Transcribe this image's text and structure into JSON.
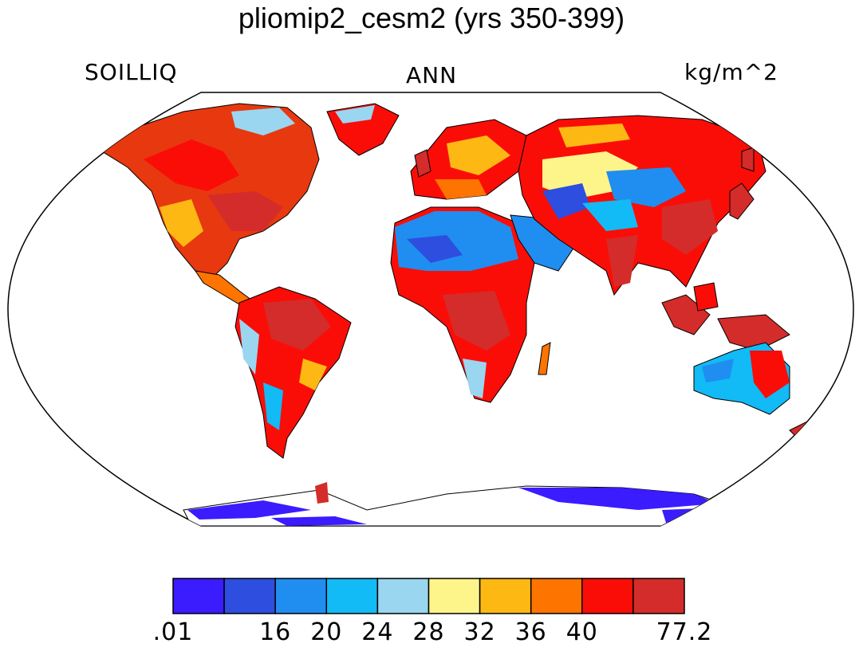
{
  "title": "pliomip2_cesm2 (yrs 350-399)",
  "subtitle_left": "SOILLIQ",
  "subtitle_center": "ANN",
  "subtitle_right": "kg/m^2",
  "colorbar": {
    "colors": [
      "#3a1cff",
      "#2e4ee0",
      "#1f8ef0",
      "#12baf6",
      "#9ad6f0",
      "#fdf58a",
      "#fdb813",
      "#fd7400",
      "#fb0d07",
      "#d42c2a"
    ],
    "tick_labels": [
      ".01",
      "16",
      "20",
      "24",
      "28",
      "32",
      "36",
      "40",
      "77.2"
    ]
  }
}
